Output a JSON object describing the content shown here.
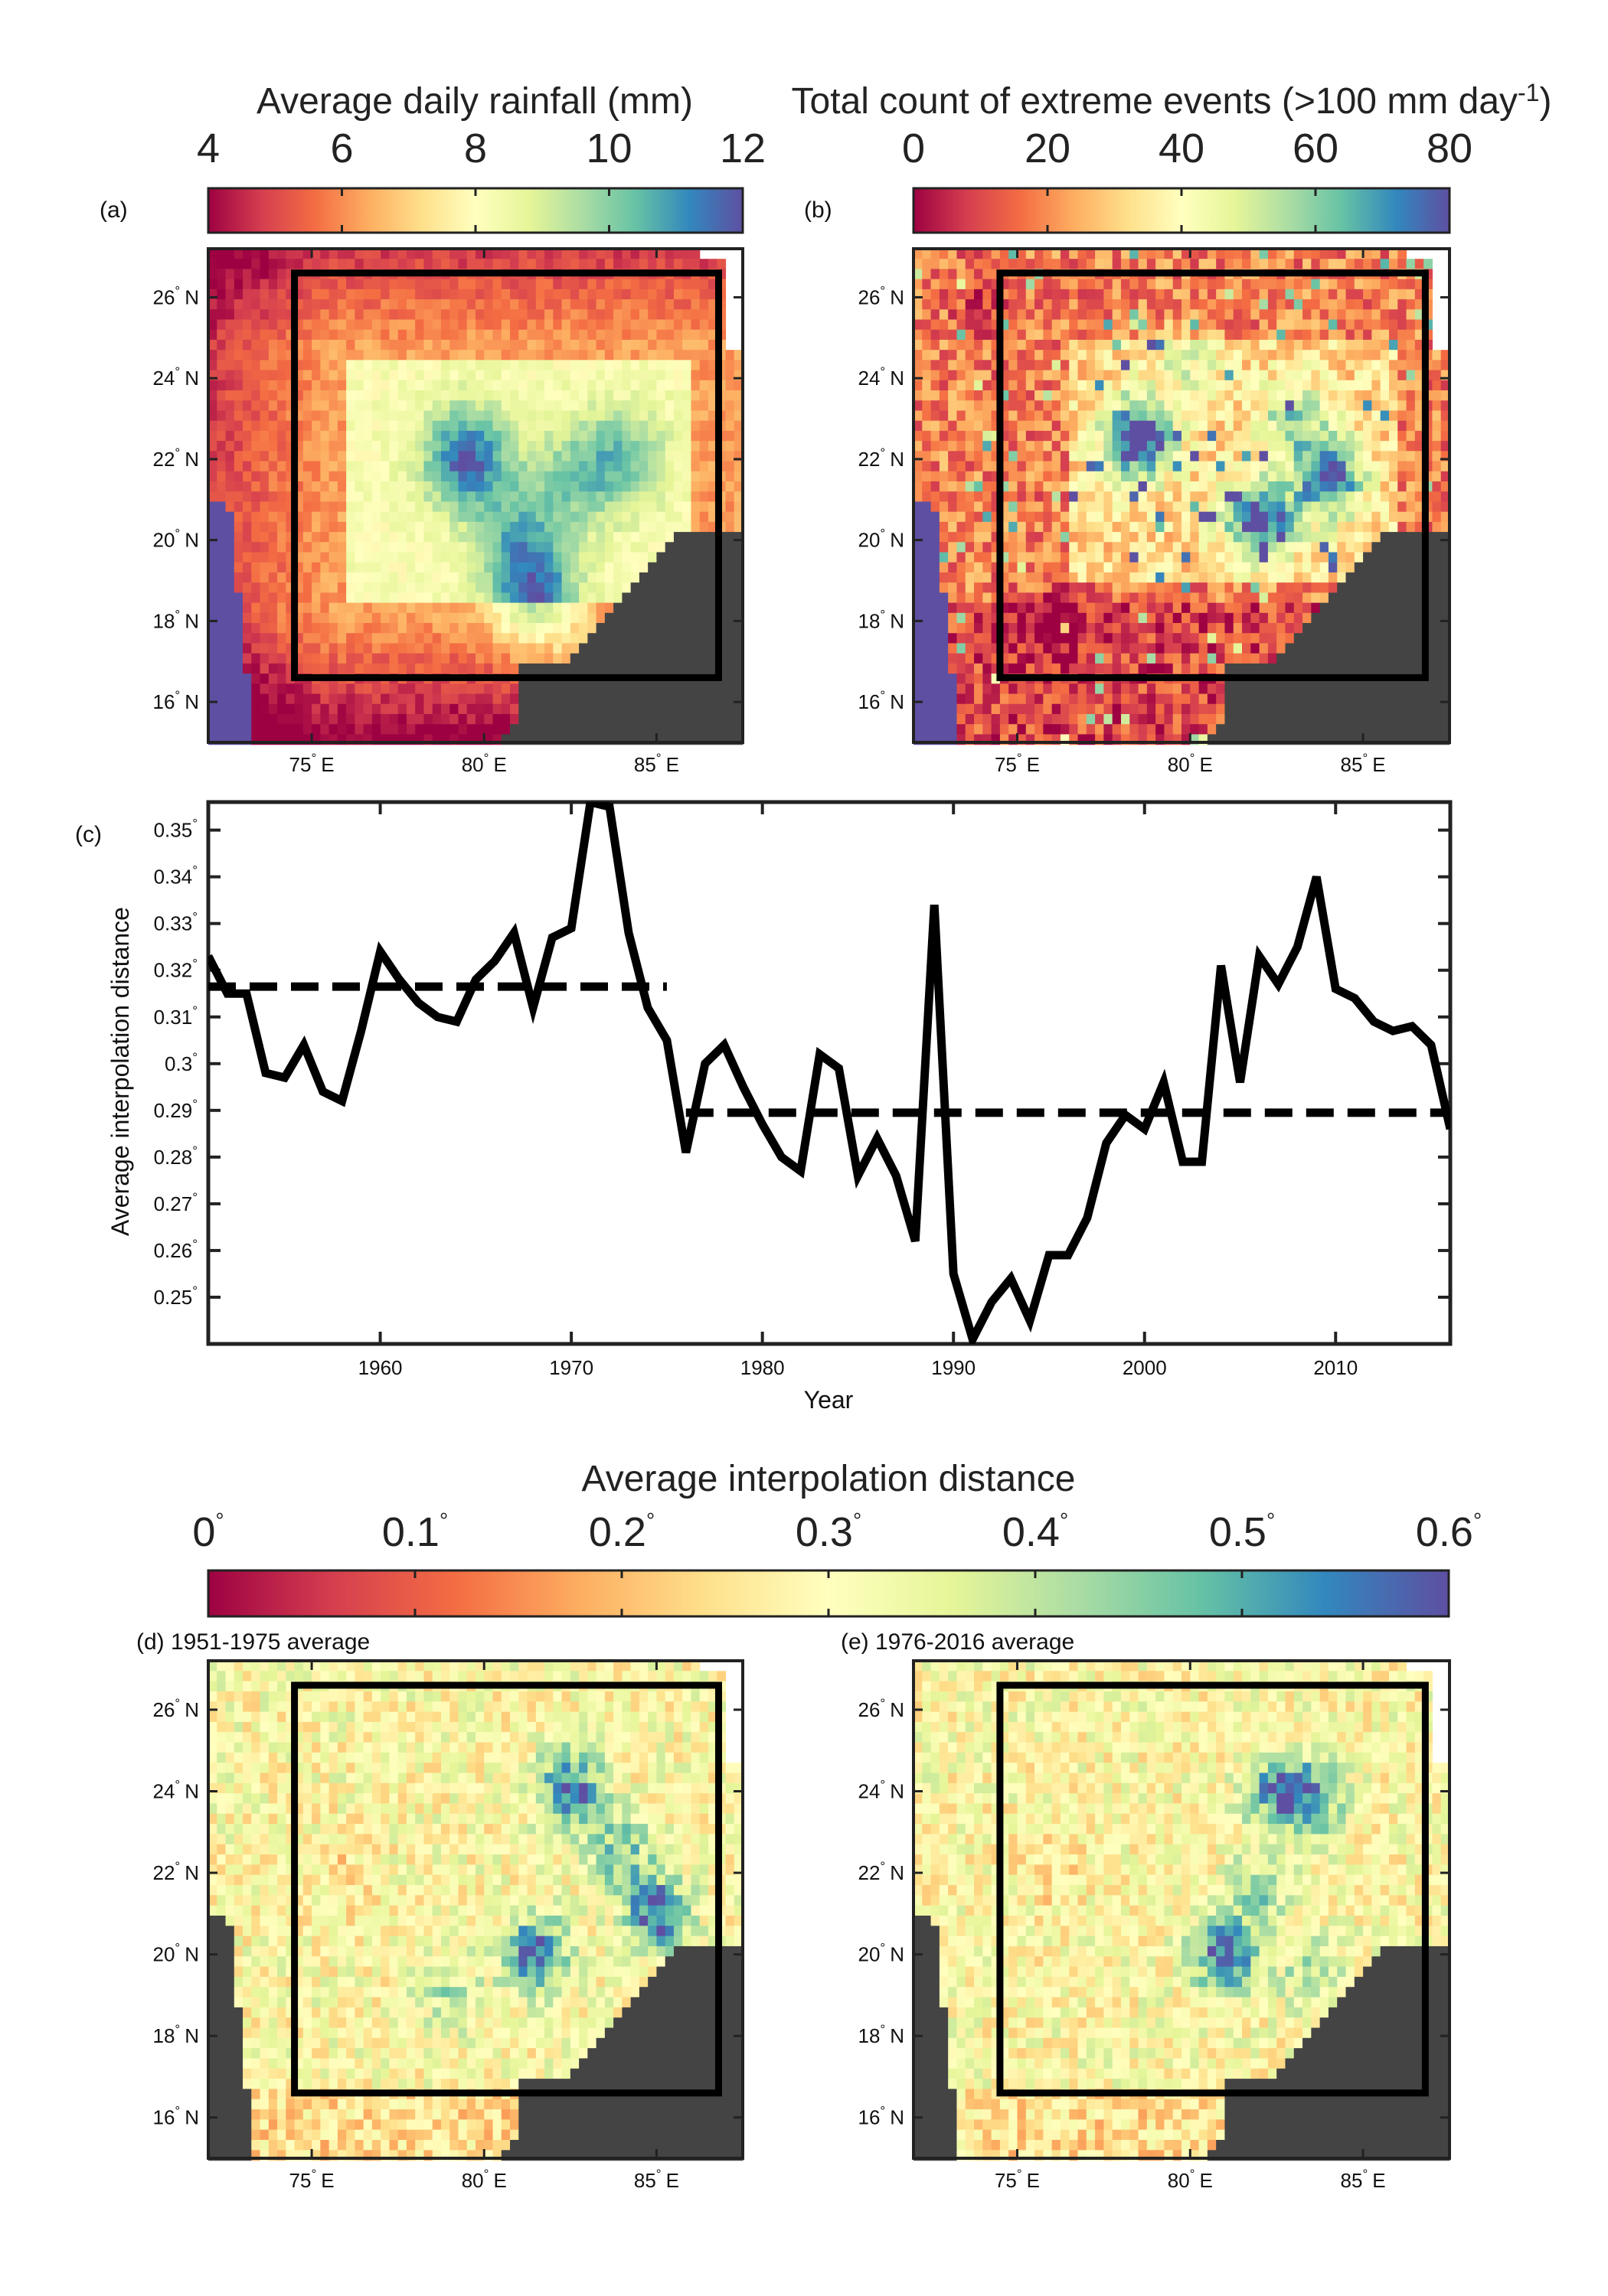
{
  "colorbars": {
    "rainfall": {
      "title": "Average daily rainfall (mm)",
      "range": [
        4,
        12
      ],
      "ticks": [
        "4",
        "6",
        "8",
        "10",
        "12"
      ]
    },
    "extremes": {
      "title_main": "Total count of extreme events (>100 mm day",
      "title_sup": "-1",
      "title_end": ")",
      "range": [
        0,
        80
      ],
      "ticks": [
        "0",
        "20",
        "40",
        "60",
        "80"
      ]
    },
    "interp": {
      "title": "Average interpolation distance",
      "range": [
        0,
        0.6
      ],
      "ticks": [
        "0",
        "0.1",
        "0.2",
        "0.3",
        "0.4",
        "0.5",
        "0.6"
      ]
    },
    "colors": [
      "#9e0142",
      "#d53e4f",
      "#f46d43",
      "#fdae61",
      "#fee08b",
      "#ffffbf",
      "#e6f598",
      "#abdda4",
      "#66c2a5",
      "#3288bd",
      "#5e4fa2"
    ]
  },
  "panels": {
    "a": {
      "label": "(a)"
    },
    "b": {
      "label": "(b)"
    },
    "c": {
      "label": "(c)"
    },
    "d": {
      "label": "(d) 1951-1975 average"
    },
    "e": {
      "label": "(e) 1976-2016 average"
    }
  },
  "map_axes": {
    "lat_ticks": [
      "26",
      "24",
      "22",
      "20",
      "18",
      "16"
    ],
    "lat_suffix": "N",
    "lon_ticks": [
      "75",
      "80",
      "85"
    ],
    "lon_suffix": "E",
    "land_color": "#444444",
    "sea_color": "#5e4fa2",
    "box_color": "#000000"
  },
  "chart_data": [
    {
      "type": "heatmap",
      "panel": "(a)",
      "title": "Average daily rainfall (mm)",
      "value_range": [
        4,
        12
      ],
      "lat_ticks": [
        26,
        24,
        22,
        20,
        18,
        16
      ],
      "lon_ticks": [
        75,
        80,
        85
      ],
      "lon_range": [
        72,
        87.5
      ],
      "lat_range": [
        15,
        27.2
      ],
      "box": {
        "lon": [
          74.5,
          86.8
        ],
        "lat": [
          16.6,
          26.6
        ]
      },
      "features": [
        {
          "lon": 79.5,
          "lat": 22,
          "value": 11.5
        },
        {
          "lon": 82.5,
          "lat": 21.5,
          "value": 9.5
        },
        {
          "lon": 81,
          "lat": 20,
          "value": 10
        },
        {
          "lon": 81.5,
          "lat": 18.5,
          "value": 11
        },
        {
          "lon": 84,
          "lat": 22,
          "value": 10
        },
        {
          "lon": 84,
          "lat": 24.5,
          "value": 7
        },
        {
          "lon": 78,
          "lat": 22,
          "value": 6
        },
        {
          "lon": 75,
          "lat": 25.5,
          "value": 5
        },
        {
          "lon": 76,
          "lat": 17,
          "value": 4.5
        }
      ]
    },
    {
      "type": "heatmap",
      "panel": "(b)",
      "title": "Total count of extreme events (>100 mm day-1)",
      "value_range": [
        0,
        80
      ],
      "lat_ticks": [
        26,
        24,
        22,
        20,
        18,
        16
      ],
      "lon_ticks": [
        75,
        80,
        85
      ],
      "lon_range": [
        72,
        87.5
      ],
      "lat_range": [
        15,
        27.2
      ],
      "box": {
        "lon": [
          74.5,
          86.8
        ],
        "lat": [
          16.6,
          26.6
        ]
      },
      "features": [
        {
          "lon": 78.5,
          "lat": 22.5,
          "value": 75
        },
        {
          "lon": 82,
          "lat": 20.5,
          "value": 70
        },
        {
          "lon": 84,
          "lat": 21.5,
          "value": 65
        },
        {
          "lon": 83,
          "lat": 23,
          "value": 45
        },
        {
          "lon": 80,
          "lat": 24.5,
          "value": 35
        },
        {
          "lon": 76,
          "lat": 18,
          "value": 8
        },
        {
          "lon": 74,
          "lat": 26,
          "value": 10
        }
      ]
    },
    {
      "type": "line",
      "panel": "(c)",
      "xlabel": "Year",
      "ylabel": "Average interpolation distance",
      "xlim": [
        1951,
        2016
      ],
      "ylim": [
        0.24,
        0.356
      ],
      "xticks": [
        1960,
        1970,
        1980,
        1990,
        2000,
        2010
      ],
      "yticks": [
        0.25,
        0.26,
        0.27,
        0.28,
        0.29,
        0.3,
        0.31,
        0.32,
        0.33,
        0.34,
        0.35
      ],
      "ytick_labels": [
        "0.25",
        "0.26",
        "0.27",
        "0.28",
        "0.29",
        "0.3",
        "0.31",
        "0.32",
        "0.33",
        "0.34",
        "0.35"
      ],
      "series": [
        {
          "style": "solid",
          "x": [
            1951,
            1952,
            1953,
            1954,
            1955,
            1956,
            1957,
            1958,
            1959,
            1960,
            1961,
            1962,
            1963,
            1964,
            1965,
            1966,
            1967,
            1968,
            1969,
            1970,
            1971,
            1972,
            1973,
            1974,
            1975,
            1976,
            1977,
            1978,
            1979,
            1980,
            1981,
            1982,
            1983,
            1984,
            1985,
            1986,
            1987,
            1988,
            1989,
            1990,
            1991,
            1992,
            1993,
            1994,
            1995,
            1996,
            1997,
            1998,
            1999,
            2000,
            2001,
            2002,
            2003,
            2004,
            2005,
            2006,
            2007,
            2008,
            2009,
            2010,
            2011,
            2012,
            2013,
            2014,
            2015,
            2016
          ],
          "y": [
            0.323,
            0.315,
            0.315,
            0.298,
            0.297,
            0.304,
            0.294,
            0.292,
            0.307,
            0.324,
            0.318,
            0.313,
            0.31,
            0.309,
            0.318,
            0.322,
            0.328,
            0.312,
            0.327,
            0.329,
            0.356,
            0.355,
            0.328,
            0.312,
            0.305,
            0.281,
            0.3,
            0.304,
            0.295,
            0.287,
            0.28,
            0.277,
            0.302,
            0.299,
            0.276,
            0.284,
            0.276,
            0.262,
            0.334,
            0.255,
            0.241,
            0.249,
            0.254,
            0.245,
            0.259,
            0.259,
            0.267,
            0.283,
            0.289,
            0.286,
            0.296,
            0.279,
            0.279,
            0.321,
            0.296,
            0.323,
            0.317,
            0.325,
            0.34,
            0.316,
            0.314,
            0.309,
            0.307,
            0.308,
            0.304,
            0.286
          ]
        },
        {
          "style": "dashed",
          "x": [
            1951,
            1975
          ],
          "y": [
            0.3165,
            0.3165
          ]
        },
        {
          "style": "dashed",
          "x": [
            1976,
            2016
          ],
          "y": [
            0.2895,
            0.2895
          ]
        }
      ]
    },
    {
      "type": "heatmap",
      "panel": "(d) 1951-1975 average",
      "title": "Average interpolation distance",
      "value_range": [
        0,
        0.6
      ],
      "lat_ticks": [
        26,
        24,
        22,
        20,
        18,
        16
      ],
      "lon_ticks": [
        75,
        80,
        85
      ],
      "lon_range": [
        72,
        87.5
      ],
      "lat_range": [
        15,
        27.2
      ],
      "box": {
        "lon": [
          74.5,
          86.8
        ],
        "lat": [
          16.6,
          26.6
        ]
      },
      "features": [
        {
          "lon": 82.5,
          "lat": 24,
          "value": 0.58
        },
        {
          "lon": 81.5,
          "lat": 20,
          "value": 0.58
        },
        {
          "lon": 85,
          "lat": 21,
          "value": 0.58
        },
        {
          "lon": 84,
          "lat": 22.5,
          "value": 0.45
        },
        {
          "lon": 79,
          "lat": 19,
          "value": 0.4
        },
        {
          "lon": 76,
          "lat": 22,
          "value": 0.25
        }
      ]
    },
    {
      "type": "heatmap",
      "panel": "(e) 1976-2016 average",
      "title": "Average interpolation distance",
      "value_range": [
        0,
        0.6
      ],
      "lat_ticks": [
        26,
        24,
        22,
        20,
        18,
        16
      ],
      "lon_ticks": [
        75,
        80,
        85
      ],
      "lon_range": [
        72,
        87.5
      ],
      "lat_range": [
        15,
        27.2
      ],
      "box": {
        "lon": [
          74.5,
          86.8
        ],
        "lat": [
          16.6,
          26.6
        ]
      },
      "features": [
        {
          "lon": 82.5,
          "lat": 24,
          "value": 0.5
        },
        {
          "lon": 83.5,
          "lat": 23.8,
          "value": 0.5
        },
        {
          "lon": 81,
          "lat": 20,
          "value": 0.58
        },
        {
          "lon": 82,
          "lat": 21.5,
          "value": 0.42
        },
        {
          "lon": 83.5,
          "lat": 19.5,
          "value": 0.4
        },
        {
          "lon": 76,
          "lat": 22,
          "value": 0.25
        }
      ]
    }
  ]
}
